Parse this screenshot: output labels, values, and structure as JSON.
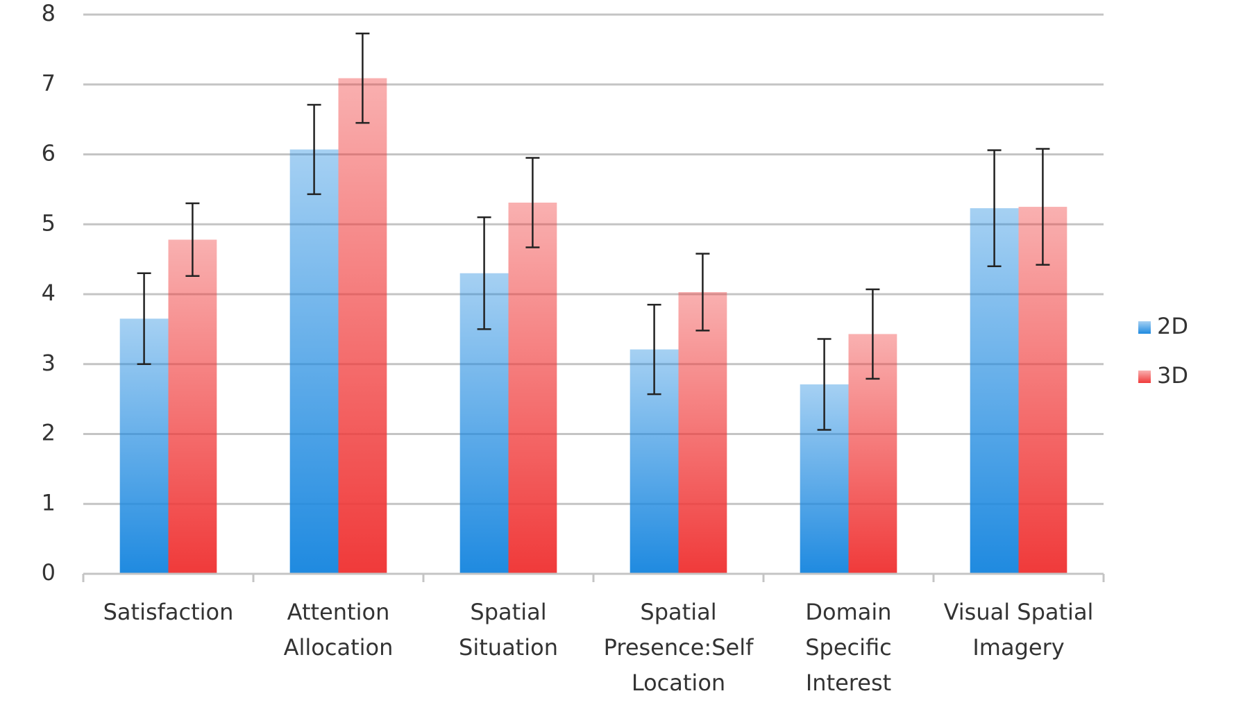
{
  "chart_data": {
    "type": "bar",
    "categories": [
      [
        "Satisfaction"
      ],
      [
        "Attention",
        "Allocation"
      ],
      [
        "Spatial",
        "Situation"
      ],
      [
        "Spatial",
        "Presence:Self",
        "Location"
      ],
      [
        "Domain",
        "Specific",
        "Interest"
      ],
      [
        "Visual Spatial",
        "Imagery"
      ]
    ],
    "series": [
      {
        "name": "2D",
        "color": "#1f8ae0",
        "values": [
          3.65,
          6.07,
          4.3,
          3.21,
          2.71,
          5.23
        ],
        "errors": [
          0.65,
          0.64,
          0.8,
          0.64,
          0.65,
          0.83
        ]
      },
      {
        "name": "3D",
        "color": "#f03a3a",
        "values": [
          4.78,
          7.09,
          5.31,
          4.03,
          3.43,
          5.25
        ],
        "errors": [
          0.52,
          0.64,
          0.64,
          0.55,
          0.64,
          0.83
        ]
      }
    ],
    "ylim": [
      0,
      8
    ],
    "yticks": [
      0,
      1,
      2,
      3,
      4,
      5,
      6,
      7,
      8
    ],
    "grid": true,
    "legend": "right"
  }
}
